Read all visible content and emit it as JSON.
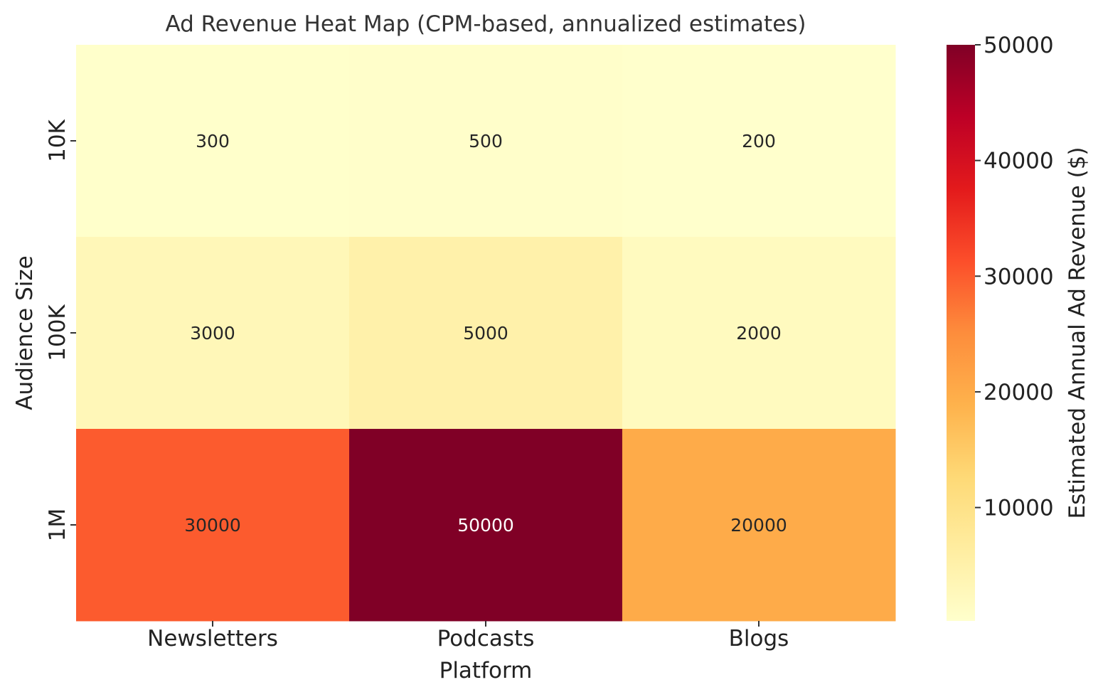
{
  "chart_data": {
    "type": "heatmap",
    "title": "Ad Revenue Heat Map (CPM-based, annualized estimates)",
    "xlabel": "Platform",
    "ylabel": "Audience Size",
    "x_categories": [
      "Newsletters",
      "Podcasts",
      "Blogs"
    ],
    "y_categories": [
      "10K",
      "100K",
      "1M"
    ],
    "values": [
      [
        300,
        500,
        200
      ],
      [
        3000,
        5000,
        2000
      ],
      [
        30000,
        50000,
        20000
      ]
    ],
    "colorbar": {
      "label": "Estimated Annual Ad Revenue ($)",
      "min": 200,
      "max": 50000,
      "ticks": [
        10000,
        20000,
        30000,
        40000,
        50000
      ],
      "colormap": "YlOrRd"
    }
  }
}
